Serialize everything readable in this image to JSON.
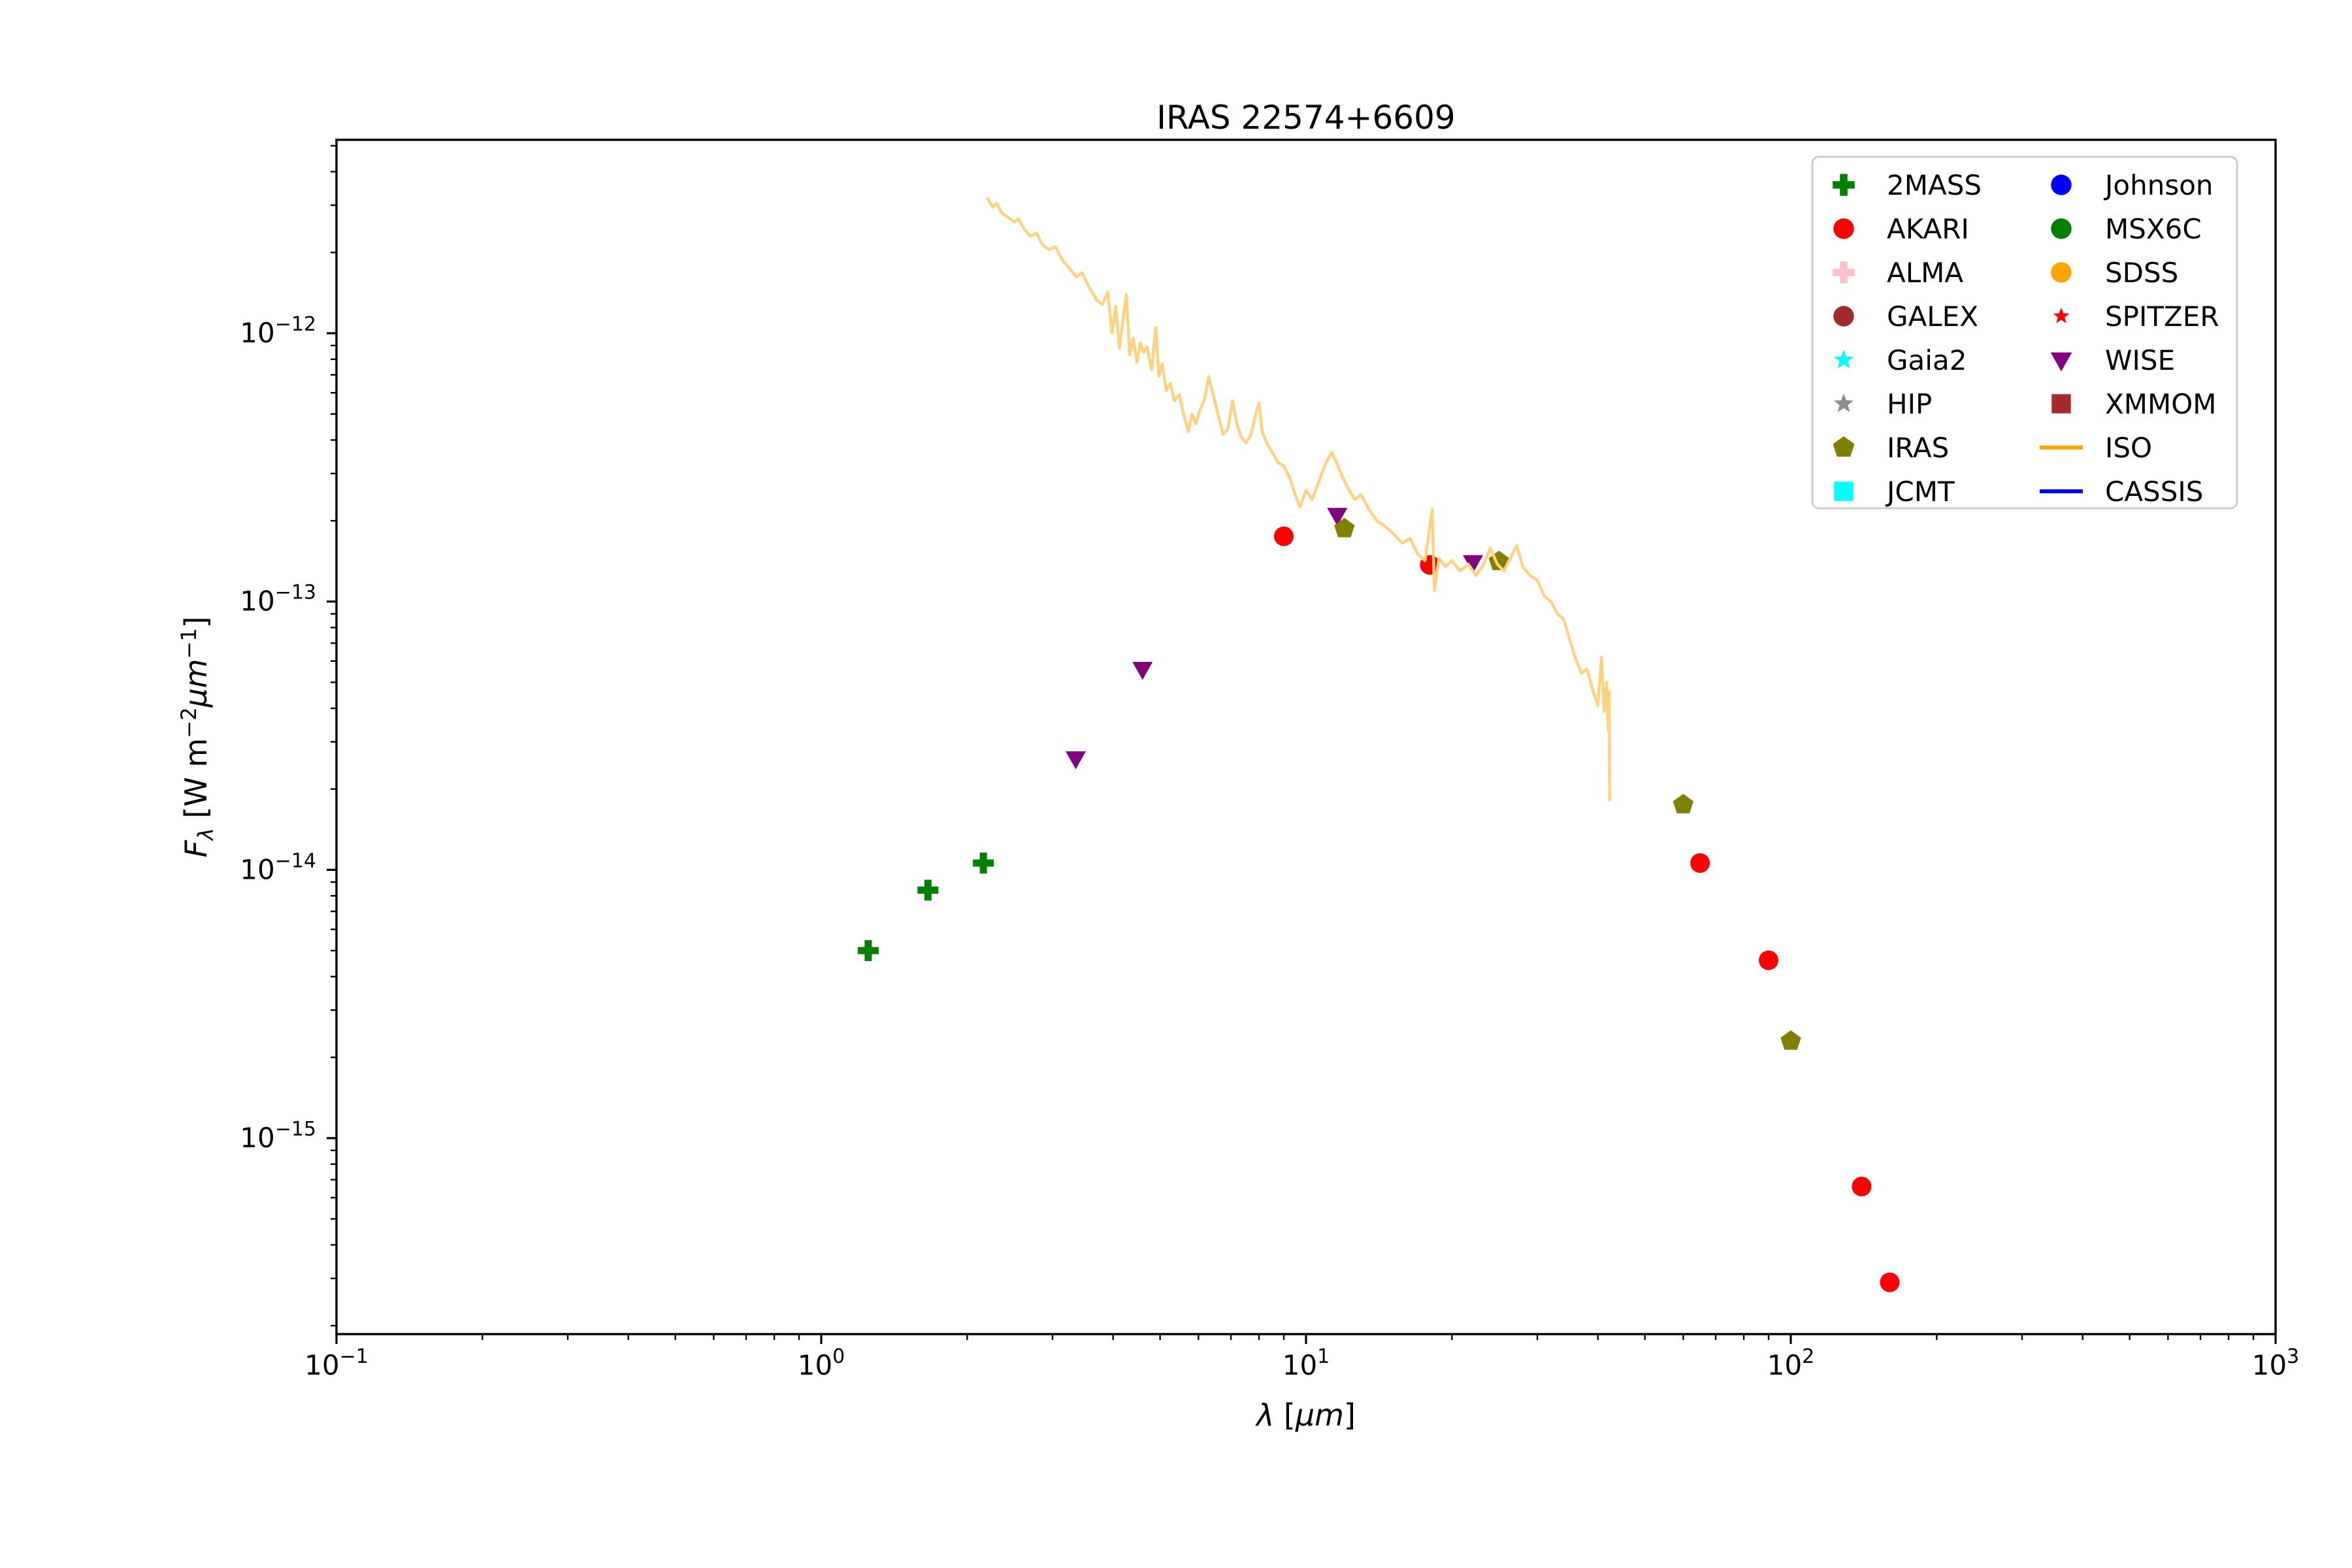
{
  "chart": {
    "title": "IRAS 22574+6609",
    "xlabel_parts": [
      {
        "t": "λ",
        "italic": true
      },
      {
        "t": " ["
      },
      {
        "t": "μm",
        "italic": true
      },
      {
        "t": "]"
      }
    ],
    "ylabel_parts": [
      {
        "t": "F",
        "italic": true
      },
      {
        "t": "λ",
        "italic": true,
        "sub": true
      },
      {
        "t": " [W m"
      },
      {
        "t": "−2",
        "sup": true
      },
      {
        "t": "μm",
        "italic": true
      },
      {
        "t": "−1",
        "sup": true
      },
      {
        "t": "]"
      }
    ],
    "background": "#ffffff",
    "axis_color": "#000000",
    "legend_border_color": "#cccccc"
  },
  "chart_data": {
    "type": "scatter",
    "title": "IRAS 22574+6609",
    "xlabel": "λ [μm]",
    "ylabel": "Fλ [W m−2 μm−1]",
    "x_scale": "log",
    "y_scale": "log",
    "xlim": [
      0.1,
      1000
    ],
    "ylim": [
      1.86e-16,
      5.26e-12
    ],
    "grid": false,
    "legend_position": "upper right",
    "legend_columns": 2,
    "x_ticks": [
      {
        "v": 0.1,
        "base": "10",
        "exp": "−1"
      },
      {
        "v": 1,
        "base": "10",
        "exp": "0"
      },
      {
        "v": 10,
        "base": "10",
        "exp": "1"
      },
      {
        "v": 100,
        "base": "10",
        "exp": "2"
      },
      {
        "v": 1000,
        "base": "10",
        "exp": "3"
      }
    ],
    "y_ticks": [
      {
        "v": 1e-12,
        "base": "10",
        "exp": "−12"
      },
      {
        "v": 1e-13,
        "base": "10",
        "exp": "−13"
      },
      {
        "v": 1e-14,
        "base": "10",
        "exp": "−14"
      },
      {
        "v": 1e-15,
        "base": "10",
        "exp": "−15"
      }
    ],
    "plot_order": [
      "2MASS",
      "AKARI",
      "WISE",
      "IRAS",
      "ISO"
    ],
    "series": [
      {
        "name": "2MASS",
        "marker": "plus",
        "color": "#008000",
        "points": [
          [
            1.25,
            5e-15
          ],
          [
            1.66,
            8.4e-15
          ],
          [
            2.16,
            1.06e-14
          ]
        ]
      },
      {
        "name": "AKARI",
        "marker": "circle",
        "color": "#ff0000",
        "points": [
          [
            9,
            1.75e-13
          ],
          [
            18,
            1.37e-13
          ],
          [
            65,
            1.06e-14
          ],
          [
            90,
            4.6e-15
          ],
          [
            140,
            6.6e-16
          ],
          [
            160,
            2.9e-16
          ]
        ]
      },
      {
        "name": "ALMA",
        "marker": "plus",
        "color": "#ffc0cb",
        "points": []
      },
      {
        "name": "GALEX",
        "marker": "circle",
        "color": "#a52a2a",
        "points": []
      },
      {
        "name": "Gaia2",
        "marker": "star",
        "color": "#00ffff",
        "points": []
      },
      {
        "name": "HIP",
        "marker": "star",
        "color": "#8c8c8c",
        "points": []
      },
      {
        "name": "IRAS",
        "marker": "pentagon",
        "color": "#808000",
        "points": [
          [
            12,
            1.87e-13
          ],
          [
            25,
            1.41e-13
          ],
          [
            60,
            1.75e-14
          ],
          [
            100,
            2.3e-15
          ]
        ]
      },
      {
        "name": "JCMT",
        "marker": "square",
        "color": "#00ffff",
        "points": []
      },
      {
        "name": "Johnson",
        "marker": "circle",
        "color": "#0000ff",
        "points": []
      },
      {
        "name": "MSX6C",
        "marker": "circle",
        "color": "#008000",
        "points": []
      },
      {
        "name": "SDSS",
        "marker": "circle",
        "color": "#ffa500",
        "points": []
      },
      {
        "name": "SPITZER",
        "marker": "star-small",
        "color": "#ff0000",
        "points": []
      },
      {
        "name": "WISE",
        "marker": "triangle-down",
        "color": "#800080",
        "points": [
          [
            3.35,
            2.6e-14
          ],
          [
            4.6,
            5.6e-14
          ],
          [
            11.6,
            2.1e-13
          ],
          [
            22.1,
            1.4e-13
          ]
        ]
      },
      {
        "name": "XMMOM",
        "marker": "square",
        "color": "#a52a2a",
        "points": []
      },
      {
        "name": "ISO",
        "marker": "line",
        "color": "#ffa500",
        "plot_color": "#ffd280",
        "points": [
          [
            2.2,
            3.2e-12
          ],
          [
            2.26,
            2.95e-12
          ],
          [
            2.3,
            3.05e-12
          ],
          [
            2.36,
            2.8e-12
          ],
          [
            2.42,
            2.72e-12
          ],
          [
            2.5,
            2.6e-12
          ],
          [
            2.55,
            2.67e-12
          ],
          [
            2.62,
            2.45e-12
          ],
          [
            2.7,
            2.3e-12
          ],
          [
            2.78,
            2.36e-12
          ],
          [
            2.86,
            2.14e-12
          ],
          [
            2.95,
            2.05e-12
          ],
          [
            3.04,
            2.1e-12
          ],
          [
            3.14,
            1.88e-12
          ],
          [
            3.24,
            1.76e-12
          ],
          [
            3.36,
            1.62e-12
          ],
          [
            3.45,
            1.68e-12
          ],
          [
            3.58,
            1.47e-12
          ],
          [
            3.7,
            1.33e-12
          ],
          [
            3.8,
            1.28e-12
          ],
          [
            3.9,
            1.42e-12
          ],
          [
            3.98,
            1e-12
          ],
          [
            4.05,
            1.26e-12
          ],
          [
            4.12,
            8.8e-13
          ],
          [
            4.18,
            1.08e-12
          ],
          [
            4.26,
            1.39e-12
          ],
          [
            4.33,
            8.3e-13
          ],
          [
            4.4,
            9.6e-13
          ],
          [
            4.48,
            7.8e-13
          ],
          [
            4.55,
            9.2e-13
          ],
          [
            4.62,
            8.5e-13
          ],
          [
            4.7,
            8.9e-13
          ],
          [
            4.8,
            7.3e-13
          ],
          [
            4.9,
            1.05e-12
          ],
          [
            4.97,
            6.9e-13
          ],
          [
            5.05,
            7.7e-13
          ],
          [
            5.15,
            6.1e-13
          ],
          [
            5.25,
            6.5e-13
          ],
          [
            5.35,
            5.6e-13
          ],
          [
            5.48,
            5.9e-13
          ],
          [
            5.6,
            4.9e-13
          ],
          [
            5.72,
            4.3e-13
          ],
          [
            5.82,
            5e-13
          ],
          [
            5.92,
            4.6e-13
          ],
          [
            6.05,
            5.2e-13
          ],
          [
            6.18,
            5.7e-13
          ],
          [
            6.3,
            6.9e-13
          ],
          [
            6.45,
            5.8e-13
          ],
          [
            6.6,
            4.9e-13
          ],
          [
            6.75,
            4.2e-13
          ],
          [
            6.9,
            4.4e-13
          ],
          [
            7.05,
            5.6e-13
          ],
          [
            7.2,
            4.6e-13
          ],
          [
            7.35,
            4.1e-13
          ],
          [
            7.52,
            3.9e-13
          ],
          [
            7.7,
            4.2e-13
          ],
          [
            7.9,
            5.1e-13
          ],
          [
            8.0,
            5.5e-13
          ],
          [
            8.12,
            4.3e-13
          ],
          [
            8.3,
            3.9e-13
          ],
          [
            8.52,
            3.6e-13
          ],
          [
            8.75,
            3.3e-13
          ],
          [
            9.0,
            3.2e-13
          ],
          [
            9.25,
            2.9e-13
          ],
          [
            9.5,
            2.5e-13
          ],
          [
            9.72,
            2.25e-13
          ],
          [
            10.0,
            2.6e-13
          ],
          [
            10.3,
            2.4e-13
          ],
          [
            10.7,
            2.9e-13
          ],
          [
            11.0,
            3.3e-13
          ],
          [
            11.3,
            3.6e-13
          ],
          [
            11.6,
            3.25e-13
          ],
          [
            11.9,
            2.9e-13
          ],
          [
            12.2,
            2.65e-13
          ],
          [
            12.6,
            2.4e-13
          ],
          [
            13.0,
            2.5e-13
          ],
          [
            13.5,
            2.2e-13
          ],
          [
            14.0,
            2e-13
          ],
          [
            14.6,
            1.9e-13
          ],
          [
            15.2,
            1.78e-13
          ],
          [
            15.8,
            1.65e-13
          ],
          [
            16.4,
            1.72e-13
          ],
          [
            17.0,
            1.5e-13
          ],
          [
            17.6,
            1.42e-13
          ],
          [
            18.2,
            2.2e-13
          ],
          [
            18.4,
            1.1e-13
          ],
          [
            18.8,
            1.45e-13
          ],
          [
            19.4,
            1.35e-13
          ],
          [
            20.0,
            1.42e-13
          ],
          [
            20.8,
            1.3e-13
          ],
          [
            21.6,
            1.38e-13
          ],
          [
            22.4,
            1.25e-13
          ],
          [
            23.2,
            1.36e-13
          ],
          [
            24.0,
            1.58e-13
          ],
          [
            24.8,
            1.38e-13
          ],
          [
            25.6,
            1.3e-13
          ],
          [
            26.4,
            1.45e-13
          ],
          [
            27.2,
            1.62e-13
          ],
          [
            28.0,
            1.35e-13
          ],
          [
            29.0,
            1.25e-13
          ],
          [
            30.0,
            1.2e-13
          ],
          [
            31.0,
            1.05e-13
          ],
          [
            32.0,
            1e-13
          ],
          [
            33.0,
            9e-14
          ],
          [
            34.0,
            8.6e-14
          ],
          [
            35.0,
            7.2e-14
          ],
          [
            36.0,
            6.1e-14
          ],
          [
            37.0,
            5.4e-14
          ],
          [
            38.0,
            5.6e-14
          ],
          [
            39.0,
            4.7e-14
          ],
          [
            40.0,
            4.1e-14
          ],
          [
            40.7,
            6.2e-14
          ],
          [
            41.2,
            3.9e-14
          ],
          [
            41.7,
            5e-14
          ],
          [
            42.0,
            3.3e-14
          ],
          [
            42.2,
            4.6e-14
          ],
          [
            42.3,
            1.8e-14
          ]
        ]
      },
      {
        "name": "CASSIS",
        "marker": "line",
        "color": "#0000ff",
        "points": []
      }
    ]
  }
}
